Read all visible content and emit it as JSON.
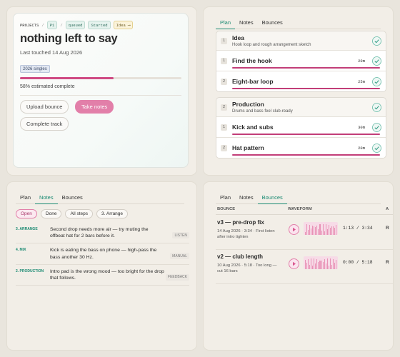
{
  "project": {
    "crumbs": [
      "PROJECTS",
      "P1",
      "queued",
      "Started",
      "Idea ⟶"
    ],
    "title": "nothing left to say",
    "last_touched": "Last touched 14 Aug 2026",
    "tag": "2026 singles",
    "progress": {
      "value": 58,
      "label": "58% estimated complete"
    },
    "buttons": [
      "Upload bounce",
      "Take notes",
      "Complete track"
    ]
  },
  "plan": {
    "tabs": [
      "Plan",
      "Notes",
      "Bounces"
    ],
    "groups": [
      {
        "number": "1",
        "title": "Idea",
        "subtitle": "Hook loop and rough arrangement sketch",
        "tasks": [
          {
            "number": "1",
            "title": "Find the hook",
            "duration": "20m"
          },
          {
            "number": "2",
            "title": "Eight-bar loop",
            "duration": "25m"
          }
        ]
      },
      {
        "number": "2",
        "title": "Production",
        "subtitle": "Drums and bass feel club-ready",
        "tasks": [
          {
            "number": "1",
            "title": "Kick and subs",
            "duration": "30m"
          },
          {
            "number": "2",
            "title": "Hat pattern",
            "duration": "20m"
          }
        ]
      }
    ]
  },
  "notes": {
    "tabs": [
      "Plan",
      "Notes",
      "Bounces"
    ],
    "filters": [
      "Open",
      "Done",
      "All steps",
      "3. Arrange"
    ],
    "rows": [
      {
        "step": "3. ARRANGE",
        "text": "Second drop needs more air — try muting the offbeat hat for 2 bars before it.",
        "source": "LISTEN"
      },
      {
        "step": "4. MIX",
        "text": "Kick is eating the bass on phone — high-pass the bass another 30 Hz.",
        "source": "MANUAL"
      },
      {
        "step": "2. PRODUCTION",
        "text": "Intro pad is the wrong mood — too bright for the drop that follows.",
        "source": "FEEDBACK"
      }
    ]
  },
  "bounces": {
    "tabs": [
      "Plan",
      "Notes",
      "Bounces"
    ],
    "headers": [
      "BOUNCE",
      "WAVEFORM",
      "A"
    ],
    "rows": [
      {
        "title": "v3 — pre-drop fix",
        "meta": "14 Aug 2026 · 3:34 · First listen after intro tighten",
        "time": "1:13 / 3:34",
        "action": "R"
      },
      {
        "title": "v2 — club length",
        "meta": "10 Aug 2026 · 5:18 · Too long — cut 16 bars",
        "time": "0:00 / 5:18",
        "action": "R"
      }
    ]
  }
}
